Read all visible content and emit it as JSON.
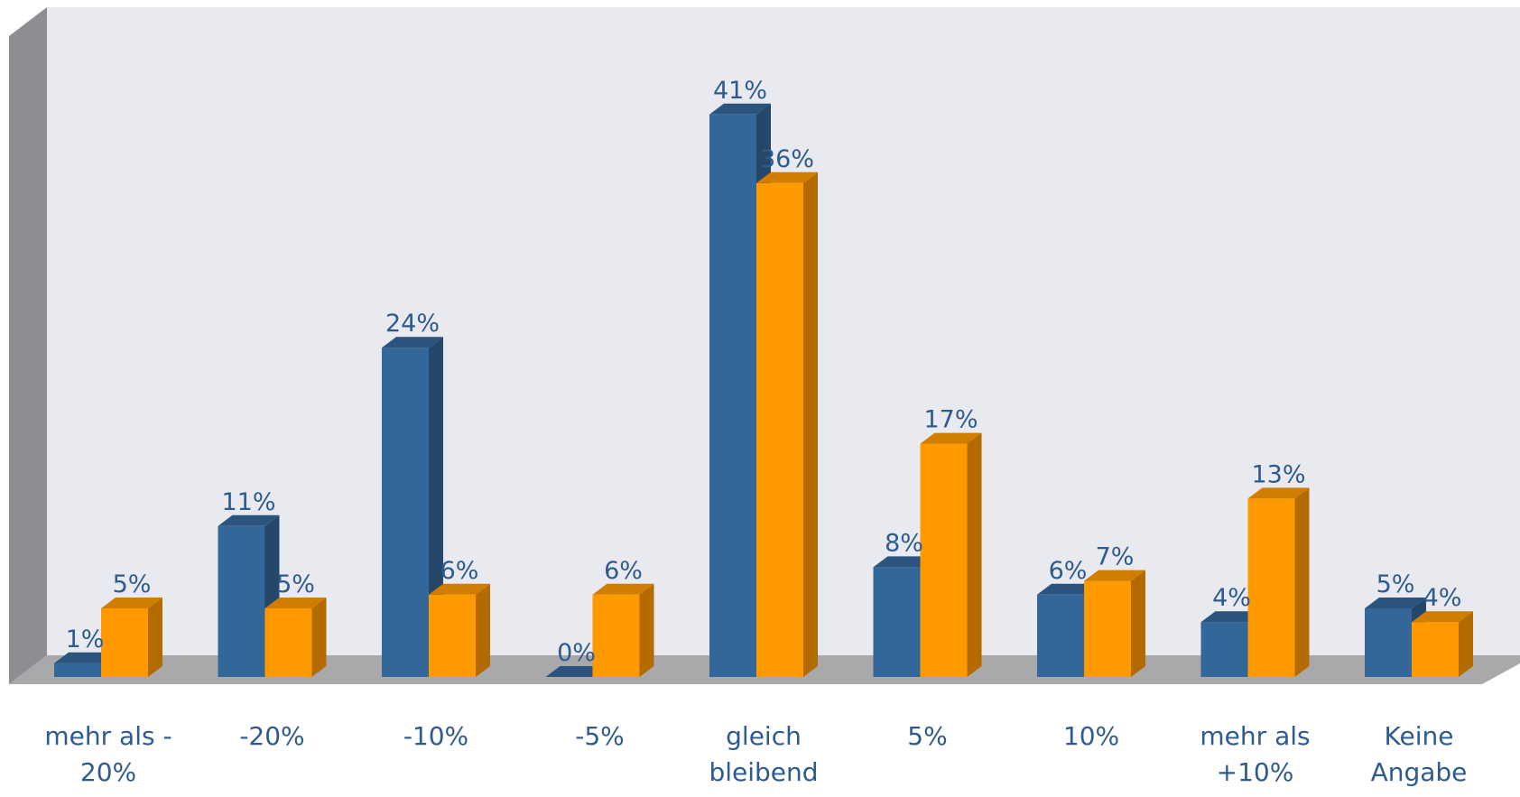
{
  "chart_data": {
    "type": "bar",
    "categories": [
      [
        "mehr als  -",
        "20%"
      ],
      [
        "-20%"
      ],
      [
        "-10%"
      ],
      [
        "-5%"
      ],
      [
        "gleich",
        "bleibend"
      ],
      [
        "5%"
      ],
      [
        "10%"
      ],
      [
        "mehr als",
        "+10%"
      ],
      [
        "Keine",
        "Angabe"
      ]
    ],
    "series": [
      {
        "values": [
          1,
          11,
          24,
          0,
          41,
          8,
          6,
          4,
          5
        ],
        "labels": [
          "1%",
          "11%",
          "24%",
          "0%",
          "41%",
          "8%",
          "6%",
          "4%",
          "5%"
        ],
        "color": "#336699"
      },
      {
        "values": [
          5,
          5,
          6,
          6,
          36,
          17,
          7,
          13,
          4
        ],
        "labels": [
          "5%",
          "5%",
          "6%",
          "6%",
          "36%",
          "17%",
          "7%",
          "13%",
          "4%"
        ],
        "color": "#ff9900"
      }
    ],
    "ylim": [
      0,
      45
    ],
    "grid": false,
    "legend": "none",
    "style": "3d-clustered-column"
  }
}
